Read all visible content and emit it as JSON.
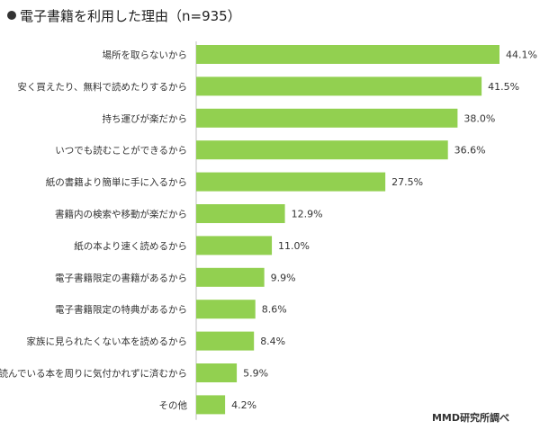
{
  "title": "電子書籍を利用した理由（n=935）",
  "source": "MMD研究所調べ",
  "bar_color": "#92d050",
  "chart_data": {
    "type": "bar",
    "orientation": "horizontal",
    "title": "電子書籍を利用した理由（n=935）",
    "unit": "%",
    "categories": [
      "場所を取らないから",
      "安く買えたり、無料で読めたりするから",
      "持ち運びが楽だから",
      "いつでも読むことができるから",
      "紙の書籍より簡単に手に入るから",
      "書籍内の検索や移動が楽だから",
      "紙の本より速く読めるから",
      "電子書籍限定の書籍があるから",
      "電子書籍限定の特典があるから",
      "家族に見られたくない本を読めるから",
      "読んでいる本を周りに気付かれずに済むから",
      "その他"
    ],
    "values": [
      44.1,
      41.5,
      38.0,
      36.6,
      27.5,
      12.9,
      11.0,
      9.9,
      8.6,
      8.4,
      5.9,
      4.2
    ],
    "value_labels": [
      "44.1%",
      "41.5%",
      "38.0%",
      "36.6%",
      "27.5%",
      "12.9%",
      "11.0%",
      "9.9%",
      "8.6%",
      "8.4%",
      "5.9%",
      "4.2%"
    ],
    "xlim": [
      0,
      50
    ],
    "grid": false,
    "legend": "none"
  }
}
